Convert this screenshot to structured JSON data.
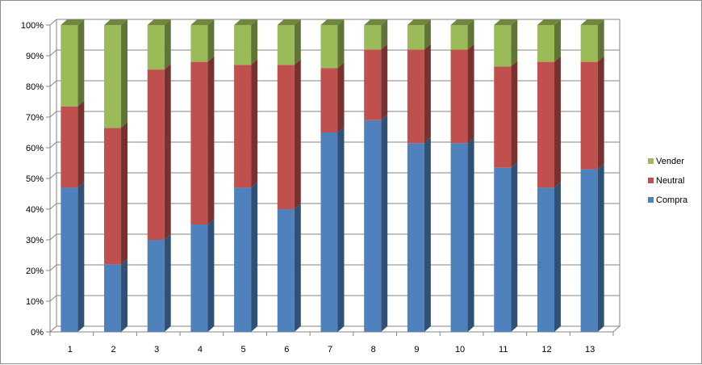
{
  "chart_data": {
    "type": "bar",
    "stacked": "percent",
    "style": "3d",
    "categories": [
      "1",
      "2",
      "3",
      "4",
      "5",
      "6",
      "7",
      "8",
      "9",
      "10",
      "11",
      "12",
      "13"
    ],
    "series": [
      {
        "name": "Compra",
        "color": "#4f81bd",
        "values": [
          47,
          22,
          30,
          35,
          47,
          40,
          65,
          69,
          61.5,
          61.5,
          53.5,
          47,
          53
        ]
      },
      {
        "name": "Neutral",
        "color": "#c0504d",
        "values": [
          26.5,
          44.5,
          55.5,
          53,
          40,
          47,
          21,
          23,
          30.5,
          30.5,
          33,
          41,
          35
        ]
      },
      {
        "name": "Vender",
        "color": "#9bbb59",
        "values": [
          26.5,
          33.5,
          14.5,
          12,
          13,
          13,
          14,
          8,
          8,
          8,
          13.5,
          12,
          12
        ]
      }
    ],
    "yticks": [
      "0%",
      "10%",
      "20%",
      "30%",
      "40%",
      "50%",
      "60%",
      "70%",
      "80%",
      "90%",
      "100%"
    ],
    "ylim": [
      0,
      100
    ],
    "grid": true,
    "legend": "right",
    "legend_order": [
      "Vender",
      "Neutral",
      "Compra"
    ],
    "title": "",
    "xlabel": "",
    "ylabel": ""
  }
}
